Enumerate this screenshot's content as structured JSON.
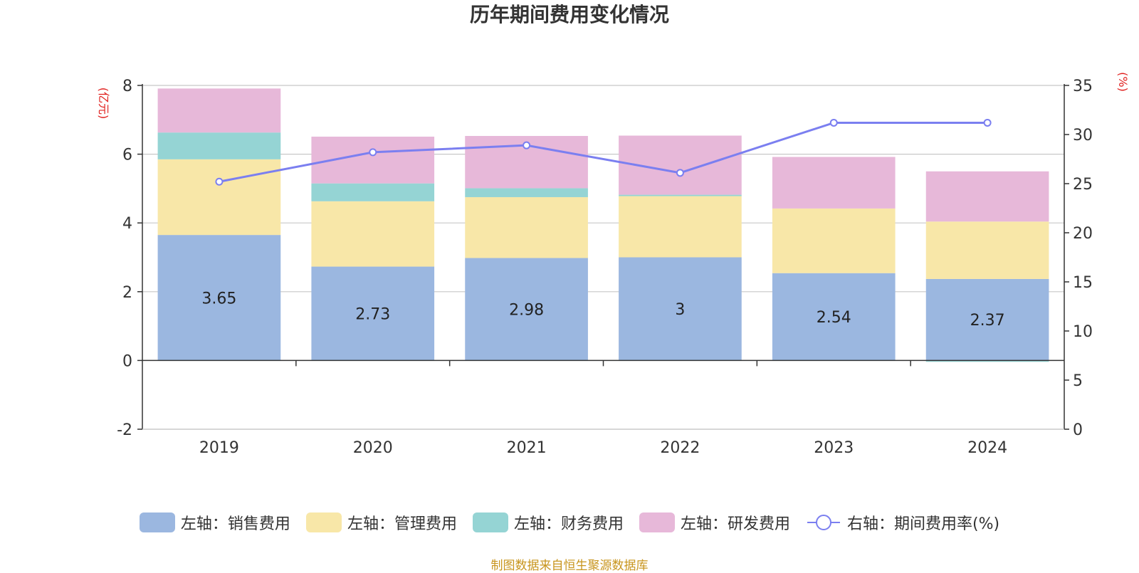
{
  "chart_data": {
    "type": "bar",
    "title": "历年期间费用变化情况",
    "stacked": true,
    "categories": [
      "2019",
      "2020",
      "2021",
      "2022",
      "2023",
      "2024"
    ],
    "y_left": {
      "label": "(亿元)",
      "range": [
        -2,
        8
      ],
      "ticks": [
        "-2",
        "0",
        "2",
        "4",
        "6",
        "8"
      ]
    },
    "y_right": {
      "label": "(%)",
      "range": [
        0,
        35
      ],
      "ticks": [
        "0",
        "5",
        "10",
        "15",
        "20",
        "25",
        "30",
        "35"
      ]
    },
    "grid": true,
    "legend_position": "bottom",
    "series": [
      {
        "name": "左轴：销售费用",
        "axis": "left",
        "type": "bar",
        "color": "#9bb7e0",
        "values": [
          3.65,
          2.73,
          2.98,
          3,
          2.54,
          2.37
        ],
        "labels": [
          "3.65",
          "2.73",
          "2.98",
          "3",
          "2.54",
          "2.37"
        ]
      },
      {
        "name": "左轴：管理费用",
        "axis": "left",
        "type": "bar",
        "color": "#f8e7a8",
        "values": [
          2.2,
          1.9,
          1.77,
          1.78,
          1.88,
          1.67
        ]
      },
      {
        "name": "左轴：财务费用",
        "axis": "left",
        "type": "bar",
        "color": "#95d4d4",
        "values": [
          0.78,
          0.52,
          0.26,
          0.04,
          0.0,
          -0.04
        ]
      },
      {
        "name": "左轴：研发费用",
        "axis": "left",
        "type": "bar",
        "color": "#e7b8d9",
        "values": [
          1.28,
          1.36,
          1.52,
          1.72,
          1.5,
          1.46
        ]
      },
      {
        "name": "右轴：期间费用率(%)",
        "axis": "right",
        "type": "line",
        "color": "#7b7ff0",
        "values": [
          25.2,
          28.2,
          28.9,
          26.1,
          31.2,
          31.2
        ]
      }
    ]
  },
  "footer": {
    "source": "制图数据来自恒生聚源数据库"
  }
}
